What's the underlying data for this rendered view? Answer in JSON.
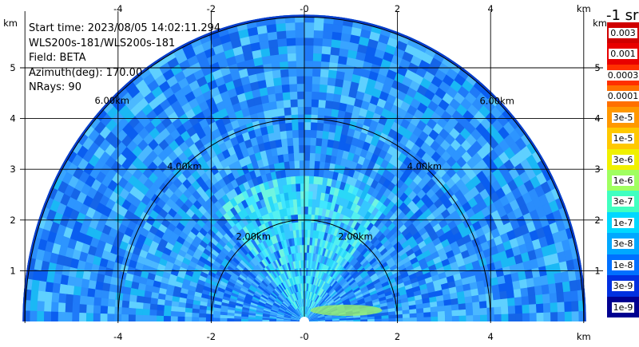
{
  "info": {
    "start_time": "Start time: 2023/08/05 14:02:11.294",
    "instrument": "WLS200s-181/WLS200s-181",
    "field": "Field: BETA",
    "azimuth": "Azimuth(deg): 170.00",
    "nrays": "NRays: 90"
  },
  "axes": {
    "x_ticks": [
      "-4",
      "-2",
      "-0",
      "2",
      "4"
    ],
    "x_ticks_bottom": [
      "-4",
      "-2",
      "-0",
      "2",
      "4"
    ],
    "x_unit": "km",
    "y_ticks": [
      "1",
      "2",
      "3",
      "4",
      "5"
    ],
    "y_unit": "km"
  },
  "range_rings": {
    "labels": [
      "2.00km",
      "4.00km",
      "6.00km"
    ]
  },
  "colorbar": {
    "unit": "-1 sr",
    "labels": [
      "0.003",
      "0.001",
      "0.0003",
      "0.0001",
      "3e-5",
      "1e-5",
      "3e-6",
      "1e-6",
      "3e-7",
      "1e-7",
      "3e-8",
      "1e-8",
      "3e-9",
      "1e-9"
    ],
    "colors": [
      "#d00000",
      "#e80000",
      "#ff3000",
      "#ff7000",
      "#ff9800",
      "#ffc800",
      "#f0f000",
      "#a0ff60",
      "#40ffc0",
      "#00d8ff",
      "#00a8ff",
      "#0070ff",
      "#0030e0",
      "#000090"
    ]
  }
}
